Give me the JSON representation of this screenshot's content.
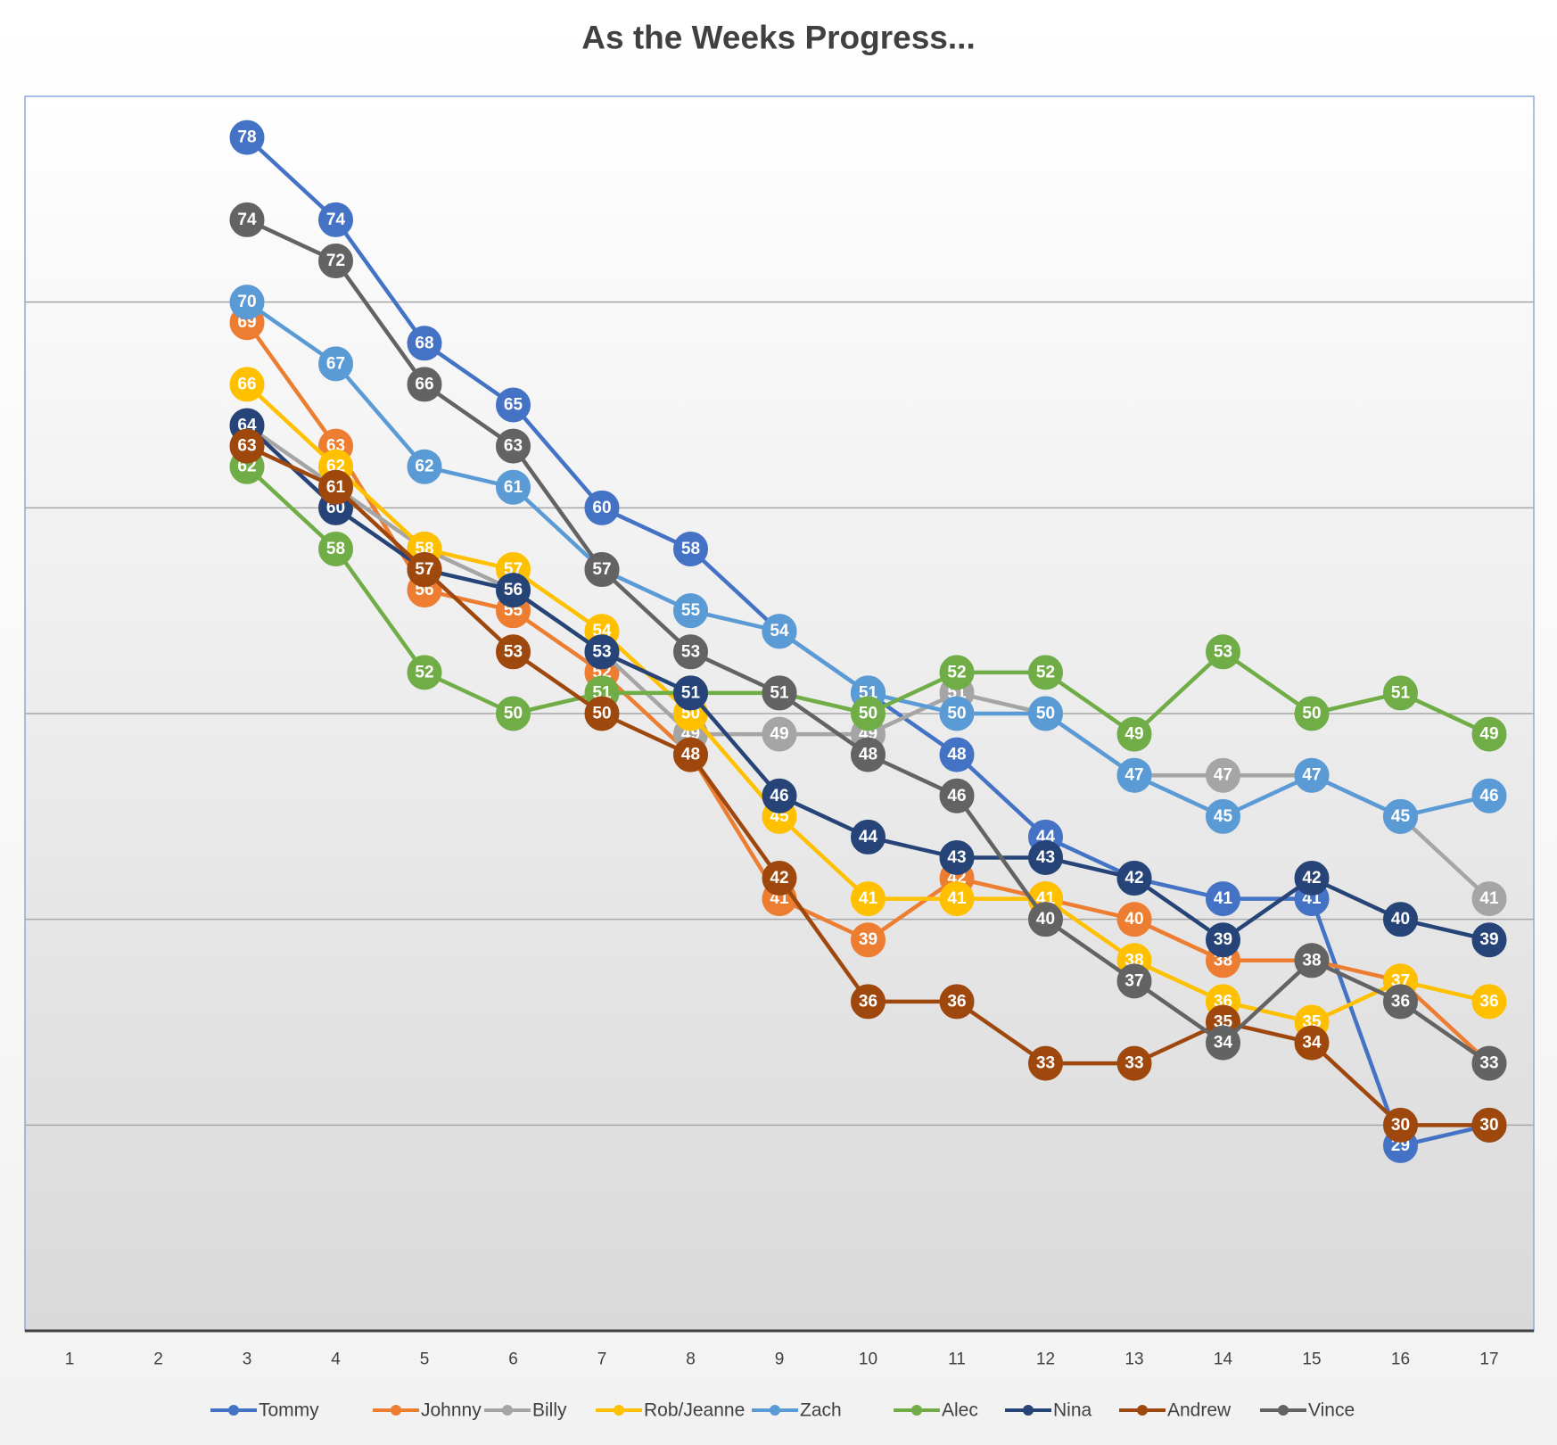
{
  "chart_data": {
    "type": "line",
    "title": "As the Weeks Progress...",
    "categories": [
      "1",
      "2",
      "3",
      "4",
      "5",
      "6",
      "7",
      "8",
      "9",
      "10",
      "11",
      "12",
      "13",
      "14",
      "15",
      "16",
      "17"
    ],
    "ylim": [
      20,
      80
    ],
    "yticks": [
      30,
      40,
      50,
      60,
      70
    ],
    "grid": true,
    "legend": "bottom",
    "series": [
      {
        "name": "Tommy",
        "color": "#4472c4",
        "values": [
          null,
          null,
          78,
          74,
          68,
          65,
          60,
          58,
          54,
          51,
          48,
          44,
          42,
          41,
          41,
          29,
          30
        ]
      },
      {
        "name": "Johnny",
        "color": "#ed7d31",
        "values": [
          null,
          null,
          69,
          63,
          56,
          55,
          52,
          48,
          41,
          39,
          42,
          41,
          40,
          38,
          38,
          37,
          33
        ]
      },
      {
        "name": "Billy",
        "color": "#a5a5a5",
        "values": [
          null,
          null,
          64,
          61,
          58,
          56,
          53,
          49,
          49,
          49,
          51,
          50,
          47,
          47,
          47,
          45,
          41
        ]
      },
      {
        "name": "Rob/Jeanne",
        "color": "#ffc000",
        "values": [
          null,
          null,
          66,
          62,
          58,
          57,
          54,
          50,
          45,
          41,
          41,
          41,
          38,
          36,
          35,
          37,
          36
        ]
      },
      {
        "name": "Zach",
        "color": "#5b9bd5",
        "values": [
          null,
          null,
          70,
          67,
          62,
          61,
          57,
          55,
          54,
          51,
          50,
          50,
          47,
          45,
          47,
          45,
          46
        ]
      },
      {
        "name": "Alec",
        "color": "#70ad47",
        "values": [
          null,
          null,
          62,
          58,
          52,
          50,
          51,
          51,
          51,
          50,
          52,
          52,
          49,
          53,
          50,
          51,
          49
        ]
      },
      {
        "name": "Nina",
        "color": "#264478",
        "values": [
          null,
          null,
          64,
          60,
          57,
          56,
          53,
          51,
          46,
          44,
          43,
          43,
          42,
          39,
          42,
          40,
          39
        ]
      },
      {
        "name": "Andrew",
        "color": "#9e480e",
        "values": [
          null,
          null,
          63,
          61,
          57,
          53,
          50,
          48,
          42,
          36,
          36,
          33,
          33,
          35,
          34,
          30,
          30
        ]
      },
      {
        "name": "Vince",
        "color": "#636363",
        "values": [
          null,
          null,
          74,
          72,
          66,
          63,
          57,
          53,
          51,
          48,
          46,
          40,
          37,
          34,
          38,
          36,
          33
        ]
      }
    ]
  }
}
